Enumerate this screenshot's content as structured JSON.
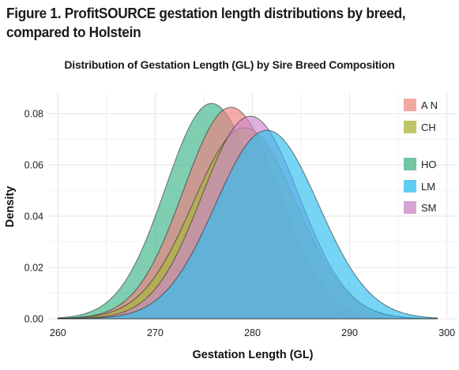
{
  "figure": {
    "caption": "Figure 1. ProfitSOURCE gestation length distributions by breed, compared to Holstein"
  },
  "chart_data": {
    "type": "area",
    "title": "Distribution of Gestation Length (GL) by Sire Breed Composition",
    "xlabel": "Gestation Length (GL)",
    "ylabel": "Density",
    "xlim": [
      259,
      301
    ],
    "ylim": [
      0,
      0.088
    ],
    "x_ticks": [
      "260",
      "270",
      "280",
      "290",
      "300"
    ],
    "y_ticks": [
      "0.00",
      "0.02",
      "0.04",
      "0.06",
      "0.08"
    ],
    "grid": true,
    "legend_position": "top-right",
    "series": [
      {
        "name": "HO",
        "mean": 275.8,
        "sd": 4.75,
        "peak": 0.084,
        "range": [
          260,
          299
        ],
        "color": "#3eb489"
      },
      {
        "name": "AN",
        "mean": 277.8,
        "sd": 4.9,
        "peak": 0.0825,
        "range": [
          260,
          299
        ],
        "color": "#f08080"
      },
      {
        "name": "CH",
        "mean": 279.2,
        "sd": 5.3,
        "peak": 0.0745,
        "range": [
          260,
          299
        ],
        "color": "#a8b83a"
      },
      {
        "name": "SM",
        "mean": 279.8,
        "sd": 5.0,
        "peak": 0.079,
        "range": [
          260,
          299
        ],
        "color": "#cc88cc"
      },
      {
        "name": "LM",
        "mean": 281.5,
        "sd": 5.3,
        "peak": 0.0735,
        "range": [
          260,
          299
        ],
        "color": "#2fbff0"
      }
    ],
    "legend": [
      {
        "label": "A N",
        "color": "#f4a8a2"
      },
      {
        "label": "CH",
        "color": "#c0c46a"
      },
      {
        "label": "HO",
        "color": "#72c6a0"
      },
      {
        "label": "LM",
        "color": "#62cdf2"
      },
      {
        "label": "SM",
        "color": "#d7a3d3"
      }
    ]
  }
}
